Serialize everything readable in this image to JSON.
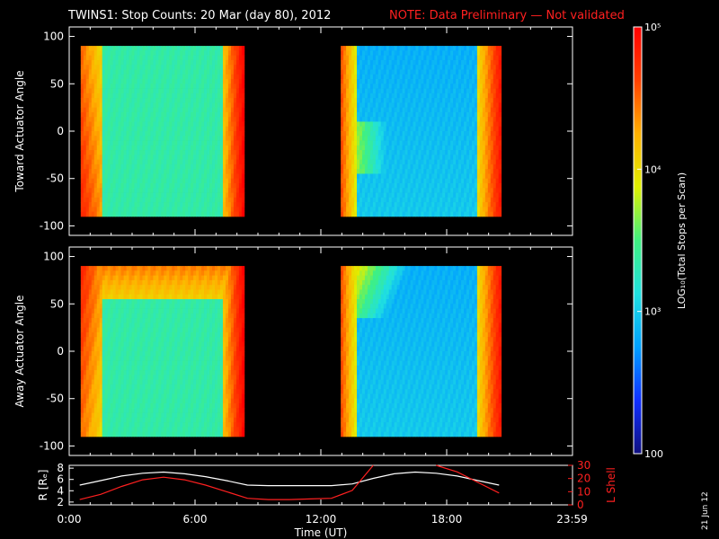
{
  "header": {
    "title": "TWINS1: Stop Counts: 20 Mar (day  80), 2012",
    "note": "NOTE: Data Preliminary — Not validated",
    "title_color": "#ffffff",
    "note_color": "#ff2020"
  },
  "side_date": "21 Jun 12",
  "chart_data": [
    {
      "type": "heatmap",
      "panel": "toward",
      "ylabel": "Toward Actuator Angle",
      "ylim": [
        -110,
        110
      ],
      "yticks": [
        "100",
        "50",
        "0",
        "-50",
        "-100"
      ],
      "ytick_values": [
        100,
        50,
        0,
        -50,
        -100
      ],
      "xlim_hours": [
        0,
        24
      ],
      "angle_range": [
        -90,
        90
      ],
      "data_segments_hours": [
        [
          0.55,
          8.35
        ],
        [
          12.95,
          20.6
        ]
      ],
      "data_gap_hours_approx": [
        8.35,
        12.95
      ],
      "dominant_colors": [
        "#ff2000",
        "#ffd000",
        "#20e0ff",
        "#2080ff",
        "#1040ff"
      ]
    },
    {
      "type": "heatmap",
      "panel": "away",
      "ylabel": "Away Actuator Angle",
      "ylim": [
        -110,
        110
      ],
      "yticks": [
        "100",
        "50",
        "0",
        "-50",
        "-100"
      ],
      "ytick_values": [
        100,
        50,
        0,
        -50,
        -100
      ],
      "xlim_hours": [
        0,
        24
      ],
      "angle_range": [
        -90,
        90
      ],
      "data_segments_hours": [
        [
          0.55,
          8.35
        ],
        [
          12.95,
          20.6
        ]
      ],
      "data_gap_hours_approx": [
        8.35,
        12.95
      ],
      "dominant_colors": [
        "#ff2000",
        "#ffd000",
        "#20e0ff",
        "#2080ff",
        "#1040ff"
      ]
    },
    {
      "type": "line",
      "panel": "orbit",
      "ylabel": "R [Rₑ]",
      "ylabel2": "L Shell",
      "yticks_left": [
        "8",
        "6",
        "4",
        "2"
      ],
      "yticks_left_values": [
        8,
        6,
        4,
        2
      ],
      "ylim_left": [
        1.5,
        8.5
      ],
      "yticks_right": [
        "30",
        "20",
        "10",
        "0"
      ],
      "yticks_right_values": [
        30,
        20,
        10,
        0
      ],
      "ylim_right": [
        0,
        30
      ],
      "x_hours": [
        0.5,
        1.5,
        2.5,
        3.5,
        4.5,
        5.5,
        6.5,
        7.5,
        8.5,
        9.5,
        10.5,
        11.5,
        12.5,
        13.5,
        14.5,
        15.5,
        16.5,
        17.5,
        18.5,
        19.5,
        20.5
      ],
      "series": [
        {
          "color": "#ffffff",
          "values": [
            5.0,
            5.8,
            6.6,
            7.1,
            7.3,
            7.0,
            6.5,
            5.8,
            5.0,
            4.9,
            4.9,
            4.9,
            4.9,
            5.2,
            6.2,
            7.0,
            7.3,
            7.1,
            6.6,
            5.8,
            5.0
          ]
        },
        {
          "color": "#ff2020",
          "values": [
            4.0,
            8.0,
            14.0,
            19.0,
            21.0,
            19.0,
            15.0,
            10.0,
            5.0,
            4.0,
            4.0,
            4.5,
            5.0,
            11.0,
            30.0,
            null,
            null,
            30.0,
            25.0,
            17.0,
            9.0
          ]
        }
      ]
    },
    {
      "type": "colorbar",
      "panel": "colorbar",
      "label": "LOG₁₀(Total Stops per Scan)",
      "ticks": [
        "10⁵",
        "10⁴",
        "10³",
        "100"
      ],
      "tick_values": [
        100000,
        10000,
        1000,
        100
      ],
      "vmin": 100,
      "vmax": 100000,
      "stops": [
        "#101080",
        "#1030ff",
        "#00a0ff",
        "#20e0e0",
        "#40f080",
        "#e0f000",
        "#ffb000",
        "#ff4000",
        "#ff0000"
      ]
    }
  ],
  "xaxis": {
    "label": "Time (UT)",
    "ticks": [
      "0:00",
      "6:00",
      "12:00",
      "18:00",
      "23:59"
    ],
    "tick_hours": [
      0,
      6,
      12,
      18,
      23.98
    ]
  }
}
